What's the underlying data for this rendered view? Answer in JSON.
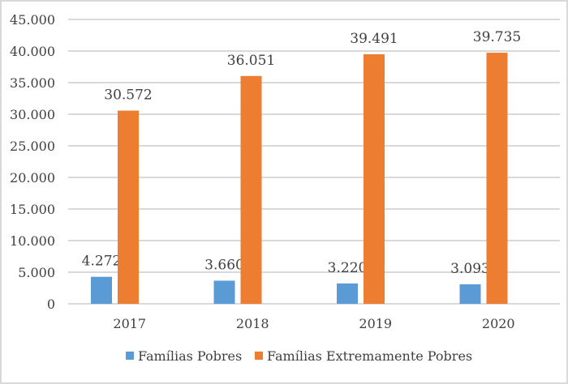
{
  "chart_data": {
    "type": "bar",
    "title": "",
    "xlabel": "",
    "ylabel": "",
    "categories": [
      "2017",
      "2018",
      "2019",
      "2020"
    ],
    "series": [
      {
        "name": "Famílias Pobres",
        "color": "#5b9bd5",
        "values": [
          4272,
          3660,
          3220,
          3093
        ],
        "labels": [
          "4.272",
          "3.660",
          "3.220",
          "3.093"
        ]
      },
      {
        "name": "Famílias Extremamente Pobres",
        "color": "#ed7d31",
        "values": [
          30572,
          36051,
          39491,
          39735
        ],
        "labels": [
          "30.572",
          "36.051",
          "39.491",
          "39.735"
        ]
      }
    ],
    "ylim": [
      0,
      45000
    ],
    "yticks": [
      0,
      5000,
      10000,
      15000,
      20000,
      25000,
      30000,
      35000,
      40000,
      45000
    ],
    "ytick_labels": [
      "0",
      "5.000",
      "10.000",
      "15.000",
      "20.000",
      "25.000",
      "30.000",
      "35.000",
      "40.000",
      "45.000"
    ],
    "grid": true,
    "legend": "bottom"
  }
}
